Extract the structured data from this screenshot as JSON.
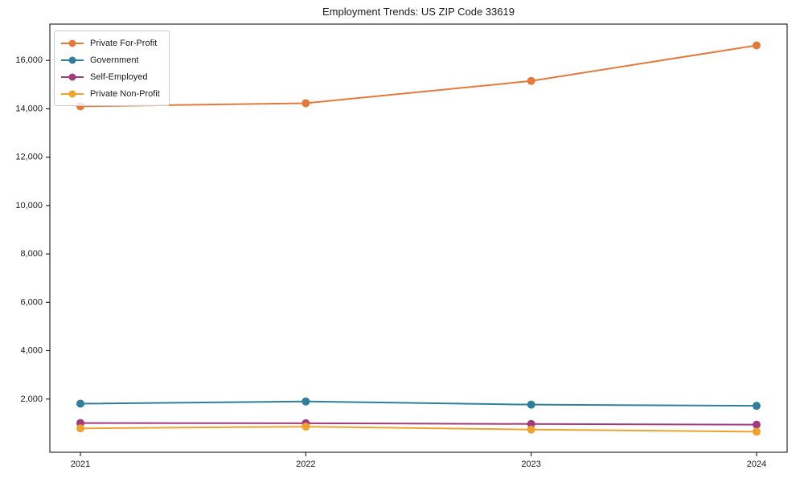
{
  "figure": {
    "background": "#ffffff",
    "plot_border_color": "#000000",
    "text_color": "#1a1a1a",
    "legend_border_color": "#cccccc"
  },
  "chart_data": {
    "type": "line",
    "title": "Employment Trends: US ZIP Code 33619",
    "categories": [
      "2021",
      "2022",
      "2023",
      "2024"
    ],
    "series": [
      {
        "name": "Private For-Profit",
        "color": "#e5793a",
        "values": [
          14100,
          14230,
          15150,
          16620
        ]
      },
      {
        "name": "Government",
        "color": "#2e7f9e",
        "values": [
          1810,
          1900,
          1770,
          1720
        ]
      },
      {
        "name": "Self-Employed",
        "color": "#a23a7d",
        "values": [
          1010,
          1000,
          970,
          940
        ]
      },
      {
        "name": "Private Non-Profit",
        "color": "#efa32e",
        "values": [
          790,
          860,
          740,
          650
        ]
      }
    ],
    "xlabel": "",
    "ylabel": "",
    "ylim": [
      -200,
      17500
    ],
    "y_ticks": [
      2000,
      4000,
      6000,
      8000,
      10000,
      12000,
      14000,
      16000
    ],
    "y_tick_labels": [
      "2,000",
      "4,000",
      "6,000",
      "8,000",
      "10,000",
      "12,000",
      "14,000",
      "16,000"
    ],
    "grid": false,
    "legend_position": "upper left",
    "marker": "circle",
    "line_width": 2,
    "marker_radius": 5
  }
}
